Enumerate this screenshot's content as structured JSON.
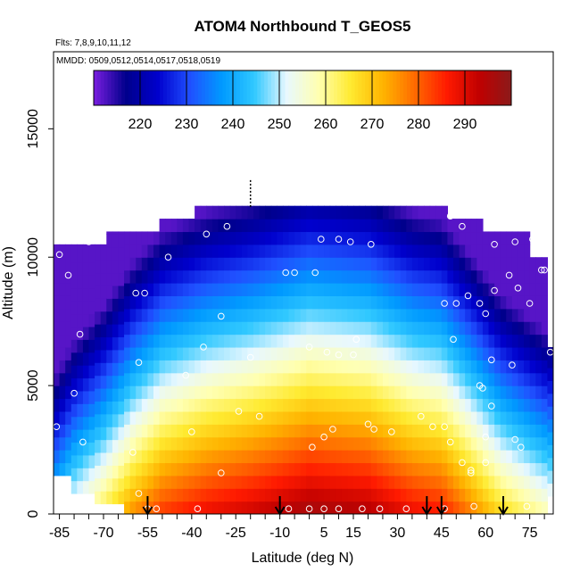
{
  "chart_data": {
    "type": "heatmap",
    "title": "ATOM4 Northbound T_GEOS5",
    "subtitle_flights": "Flts: 7,8,9,10,11,12",
    "subtitle_dates": "MMDD: 0509,0512,0514,0517,0518,0519",
    "xlabel": "Latitude (deg N)",
    "ylabel": "Altitude (m)",
    "xlim": [
      -87,
      83
    ],
    "ylim": [
      0,
      18000
    ],
    "x_ticks": [
      -85,
      -70,
      -55,
      -40,
      -25,
      -10,
      5,
      15,
      30,
      45,
      60,
      75
    ],
    "y_ticks": [
      0,
      5000,
      10000,
      15000
    ],
    "colorbar": {
      "range": [
        210,
        300
      ],
      "ticks": [
        220,
        230,
        240,
        250,
        260,
        270,
        280,
        290
      ],
      "colors": [
        "#7a1ee0",
        "#00008b",
        "#0000cd",
        "#2050ff",
        "#009aff",
        "#30c8ff",
        "#e8f8ff",
        "#ffffb0",
        "#ffea30",
        "#ffb400",
        "#ff6a00",
        "#ff1a00",
        "#c00000",
        "#8b1a1a"
      ]
    },
    "coverage_top": [
      {
        "lat": -86,
        "alt": 10500
      },
      {
        "lat": -70,
        "alt": 10500
      },
      {
        "lat": -69,
        "alt": 11000
      },
      {
        "lat": -52,
        "alt": 11000
      },
      {
        "lat": -51,
        "alt": 11500
      },
      {
        "lat": -40,
        "alt": 11500
      },
      {
        "lat": -39,
        "alt": 12000
      },
      {
        "lat": 47,
        "alt": 12000
      },
      {
        "lat": 48,
        "alt": 11500
      },
      {
        "lat": 58,
        "alt": 11500
      },
      {
        "lat": 59,
        "alt": 11000
      },
      {
        "lat": 75,
        "alt": 11000
      },
      {
        "lat": 76,
        "alt": 10000
      },
      {
        "lat": 80,
        "alt": 10000
      },
      {
        "lat": 81,
        "alt": 6500
      },
      {
        "lat": 82,
        "alt": 6500
      }
    ],
    "temperature_model": {
      "surface_by_lat": [
        {
          "lat": -86,
          "t": 248
        },
        {
          "lat": -80,
          "t": 256
        },
        {
          "lat": -70,
          "t": 265
        },
        {
          "lat": -60,
          "t": 276
        },
        {
          "lat": -50,
          "t": 284
        },
        {
          "lat": -35,
          "t": 289
        },
        {
          "lat": -20,
          "t": 292
        },
        {
          "lat": 0,
          "t": 297
        },
        {
          "lat": 20,
          "t": 295
        },
        {
          "lat": 35,
          "t": 289
        },
        {
          "lat": 45,
          "t": 287
        },
        {
          "lat": 55,
          "t": 278
        },
        {
          "lat": 65,
          "t": 268
        },
        {
          "lat": 75,
          "t": 262
        },
        {
          "lat": 82,
          "t": 258
        }
      ],
      "lapse_K_per_km": 6.5,
      "min_t": 212
    },
    "flight_points": [
      {
        "lat": -85,
        "alt": 10100
      },
      {
        "lat": -82,
        "alt": 9300
      },
      {
        "lat": -78,
        "alt": 7000
      },
      {
        "lat": -80,
        "alt": 4700
      },
      {
        "lat": -86,
        "alt": 3400
      },
      {
        "lat": -77,
        "alt": 2800
      },
      {
        "lat": -75,
        "alt": 10600
      },
      {
        "lat": -59,
        "alt": 8600
      },
      {
        "lat": -56,
        "alt": 8600
      },
      {
        "lat": -58,
        "alt": 5900
      },
      {
        "lat": -60,
        "alt": 2400
      },
      {
        "lat": -48,
        "alt": 10000
      },
      {
        "lat": -42,
        "alt": 5400
      },
      {
        "lat": -40,
        "alt": 3200
      },
      {
        "lat": -35,
        "alt": 10900
      },
      {
        "lat": -28,
        "alt": 11200
      },
      {
        "lat": -30,
        "alt": 7700
      },
      {
        "lat": -36,
        "alt": 6500
      },
      {
        "lat": -24,
        "alt": 4000
      },
      {
        "lat": -20,
        "alt": 6100
      },
      {
        "lat": -17,
        "alt": 3800
      },
      {
        "lat": -30,
        "alt": 1600
      },
      {
        "lat": -8,
        "alt": 9400
      },
      {
        "lat": -5,
        "alt": 9400
      },
      {
        "lat": 2,
        "alt": 9400
      },
      {
        "lat": 4,
        "alt": 10700
      },
      {
        "lat": 10,
        "alt": 10700
      },
      {
        "lat": 14,
        "alt": 10600
      },
      {
        "lat": 21,
        "alt": 10500
      },
      {
        "lat": 0,
        "alt": 6500
      },
      {
        "lat": 6,
        "alt": 6300
      },
      {
        "lat": 10,
        "alt": 6200
      },
      {
        "lat": 16,
        "alt": 6800
      },
      {
        "lat": 15,
        "alt": 6200
      },
      {
        "lat": 20,
        "alt": 3500
      },
      {
        "lat": 22,
        "alt": 3300
      },
      {
        "lat": 8,
        "alt": 3300
      },
      {
        "lat": 5,
        "alt": 3000
      },
      {
        "lat": 1,
        "alt": 2600
      },
      {
        "lat": 28,
        "alt": 3200
      },
      {
        "lat": 38,
        "alt": 3800
      },
      {
        "lat": 42,
        "alt": 3400
      },
      {
        "lat": 48,
        "alt": 11600
      },
      {
        "lat": 52,
        "alt": 11200
      },
      {
        "lat": 46,
        "alt": 8200
      },
      {
        "lat": 50,
        "alt": 8200
      },
      {
        "lat": 54,
        "alt": 8500
      },
      {
        "lat": 58,
        "alt": 8200
      },
      {
        "lat": 60,
        "alt": 7800
      },
      {
        "lat": 49,
        "alt": 6800
      },
      {
        "lat": 62,
        "alt": 6000
      },
      {
        "lat": 58,
        "alt": 5000
      },
      {
        "lat": 59,
        "alt": 4900
      },
      {
        "lat": 60,
        "alt": 3000
      },
      {
        "lat": 62,
        "alt": 4200
      },
      {
        "lat": 69,
        "alt": 5800
      },
      {
        "lat": 68,
        "alt": 9300
      },
      {
        "lat": 71,
        "alt": 8800
      },
      {
        "lat": 76,
        "alt": 10700
      },
      {
        "lat": 79,
        "alt": 9500
      },
      {
        "lat": 80,
        "alt": 9500
      },
      {
        "lat": 75,
        "alt": 8200
      },
      {
        "lat": 82,
        "alt": 6300
      },
      {
        "lat": 70,
        "alt": 10600
      },
      {
        "lat": 63,
        "alt": 10500
      },
      {
        "lat": 63,
        "alt": 8700
      },
      {
        "lat": 55,
        "alt": 1600
      },
      {
        "lat": 52,
        "alt": 2000
      },
      {
        "lat": 55,
        "alt": 1700
      },
      {
        "lat": 48,
        "alt": 2800
      },
      {
        "lat": 46,
        "alt": 3400
      },
      {
        "lat": 70,
        "alt": 2900
      },
      {
        "lat": 72,
        "alt": 2600
      },
      {
        "lat": 60,
        "alt": 2000
      },
      {
        "lat": 74,
        "alt": 300
      },
      {
        "lat": 56,
        "alt": 300
      },
      {
        "lat": 46,
        "alt": 200
      },
      {
        "lat": 33,
        "alt": 200
      },
      {
        "lat": 24,
        "alt": 200
      },
      {
        "lat": 18,
        "alt": 200
      },
      {
        "lat": 10,
        "alt": 200
      },
      {
        "lat": 5,
        "alt": 200
      },
      {
        "lat": 0,
        "alt": 200
      },
      {
        "lat": -7,
        "alt": 200
      },
      {
        "lat": -38,
        "alt": 200
      },
      {
        "lat": -52,
        "alt": 200
      },
      {
        "lat": -55,
        "alt": 200
      },
      {
        "lat": -58,
        "alt": 800
      }
    ],
    "arrows": [
      -55,
      -10,
      40,
      45,
      66
    ],
    "marker_line": {
      "lat": -20,
      "alt_from": 11900,
      "alt_to": 13000
    }
  }
}
